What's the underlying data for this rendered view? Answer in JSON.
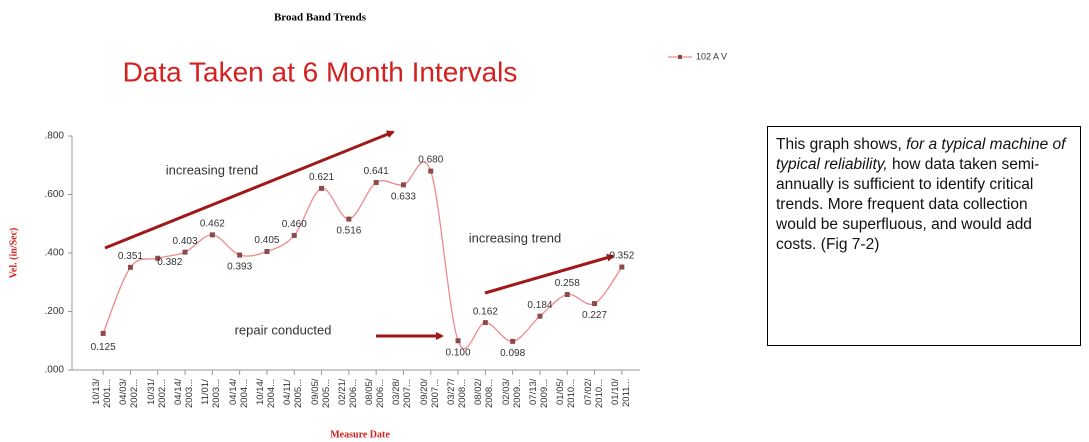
{
  "chart_data": {
    "type": "line",
    "title": "Broad Band Trends",
    "subtitle": "Data Taken at 6 Month Intervals",
    "y_label": "Vel. (in/Sec)",
    "x_label": "Measure Date",
    "categories": [
      "10/13/\n2001...",
      "04/03/\n2002...",
      "10/31/\n2002...",
      "04/14/\n2003...",
      "11/01/\n2003...",
      "04/14/\n2004...",
      "10/14/\n2004...",
      "04/11/\n2005...",
      "09/05/\n2005...",
      "02/21/\n2006...",
      "08/05/\n2006...",
      "03/28/\n2007...",
      "09/20/\n2007...",
      "03/27/\n2008...",
      "08/02/\n2008...",
      "02/03/\n2009...",
      "07/13/\n2009...",
      "01/05/\n2010...",
      "07/02/\n2010...",
      "01/10/\n2011..."
    ],
    "series": [
      {
        "name": "102 A V",
        "color": "#f08a8a",
        "marker_color": "#8c4a4a",
        "values": [
          0.125,
          0.351,
          0.382,
          0.403,
          0.462,
          0.393,
          0.405,
          0.46,
          0.621,
          0.516,
          0.641,
          0.633,
          0.68,
          0.1,
          0.162,
          0.098,
          0.184,
          0.258,
          0.227,
          0.352
        ],
        "value_labels": [
          "0.125",
          "0.351",
          "0.382",
          "0.403",
          "0.462",
          "0.393",
          "0.405",
          "0.460",
          "0.621",
          "0.516",
          "0.641",
          "0.633",
          "0.680",
          "0.100",
          "0.162",
          "0.098",
          "0.184",
          "0.258",
          "0.227",
          "0.352"
        ]
      }
    ],
    "ylim": [
      0,
      0.8
    ],
    "yticks": [
      {
        "value": 0,
        "label": ".000"
      },
      {
        "value": 0.2,
        "label": ".200"
      },
      {
        "value": 0.4,
        "label": ".400"
      },
      {
        "value": 0.6,
        "label": ".600"
      },
      {
        "value": 0.8,
        "label": ".800"
      }
    ],
    "grid": false,
    "legend": "top-right",
    "annotations": {
      "trend_1": "increasing trend",
      "trend_2": "increasing trend",
      "repair": "repair conducted",
      "note": [
        "This graph shows,",
        "for a typical machine of typical reliability,",
        "how data taken semi-annually is sufficient to identify critical trends. More frequent data collection would be superfluous, and would add costs. (Fig 7-2)"
      ]
    }
  }
}
